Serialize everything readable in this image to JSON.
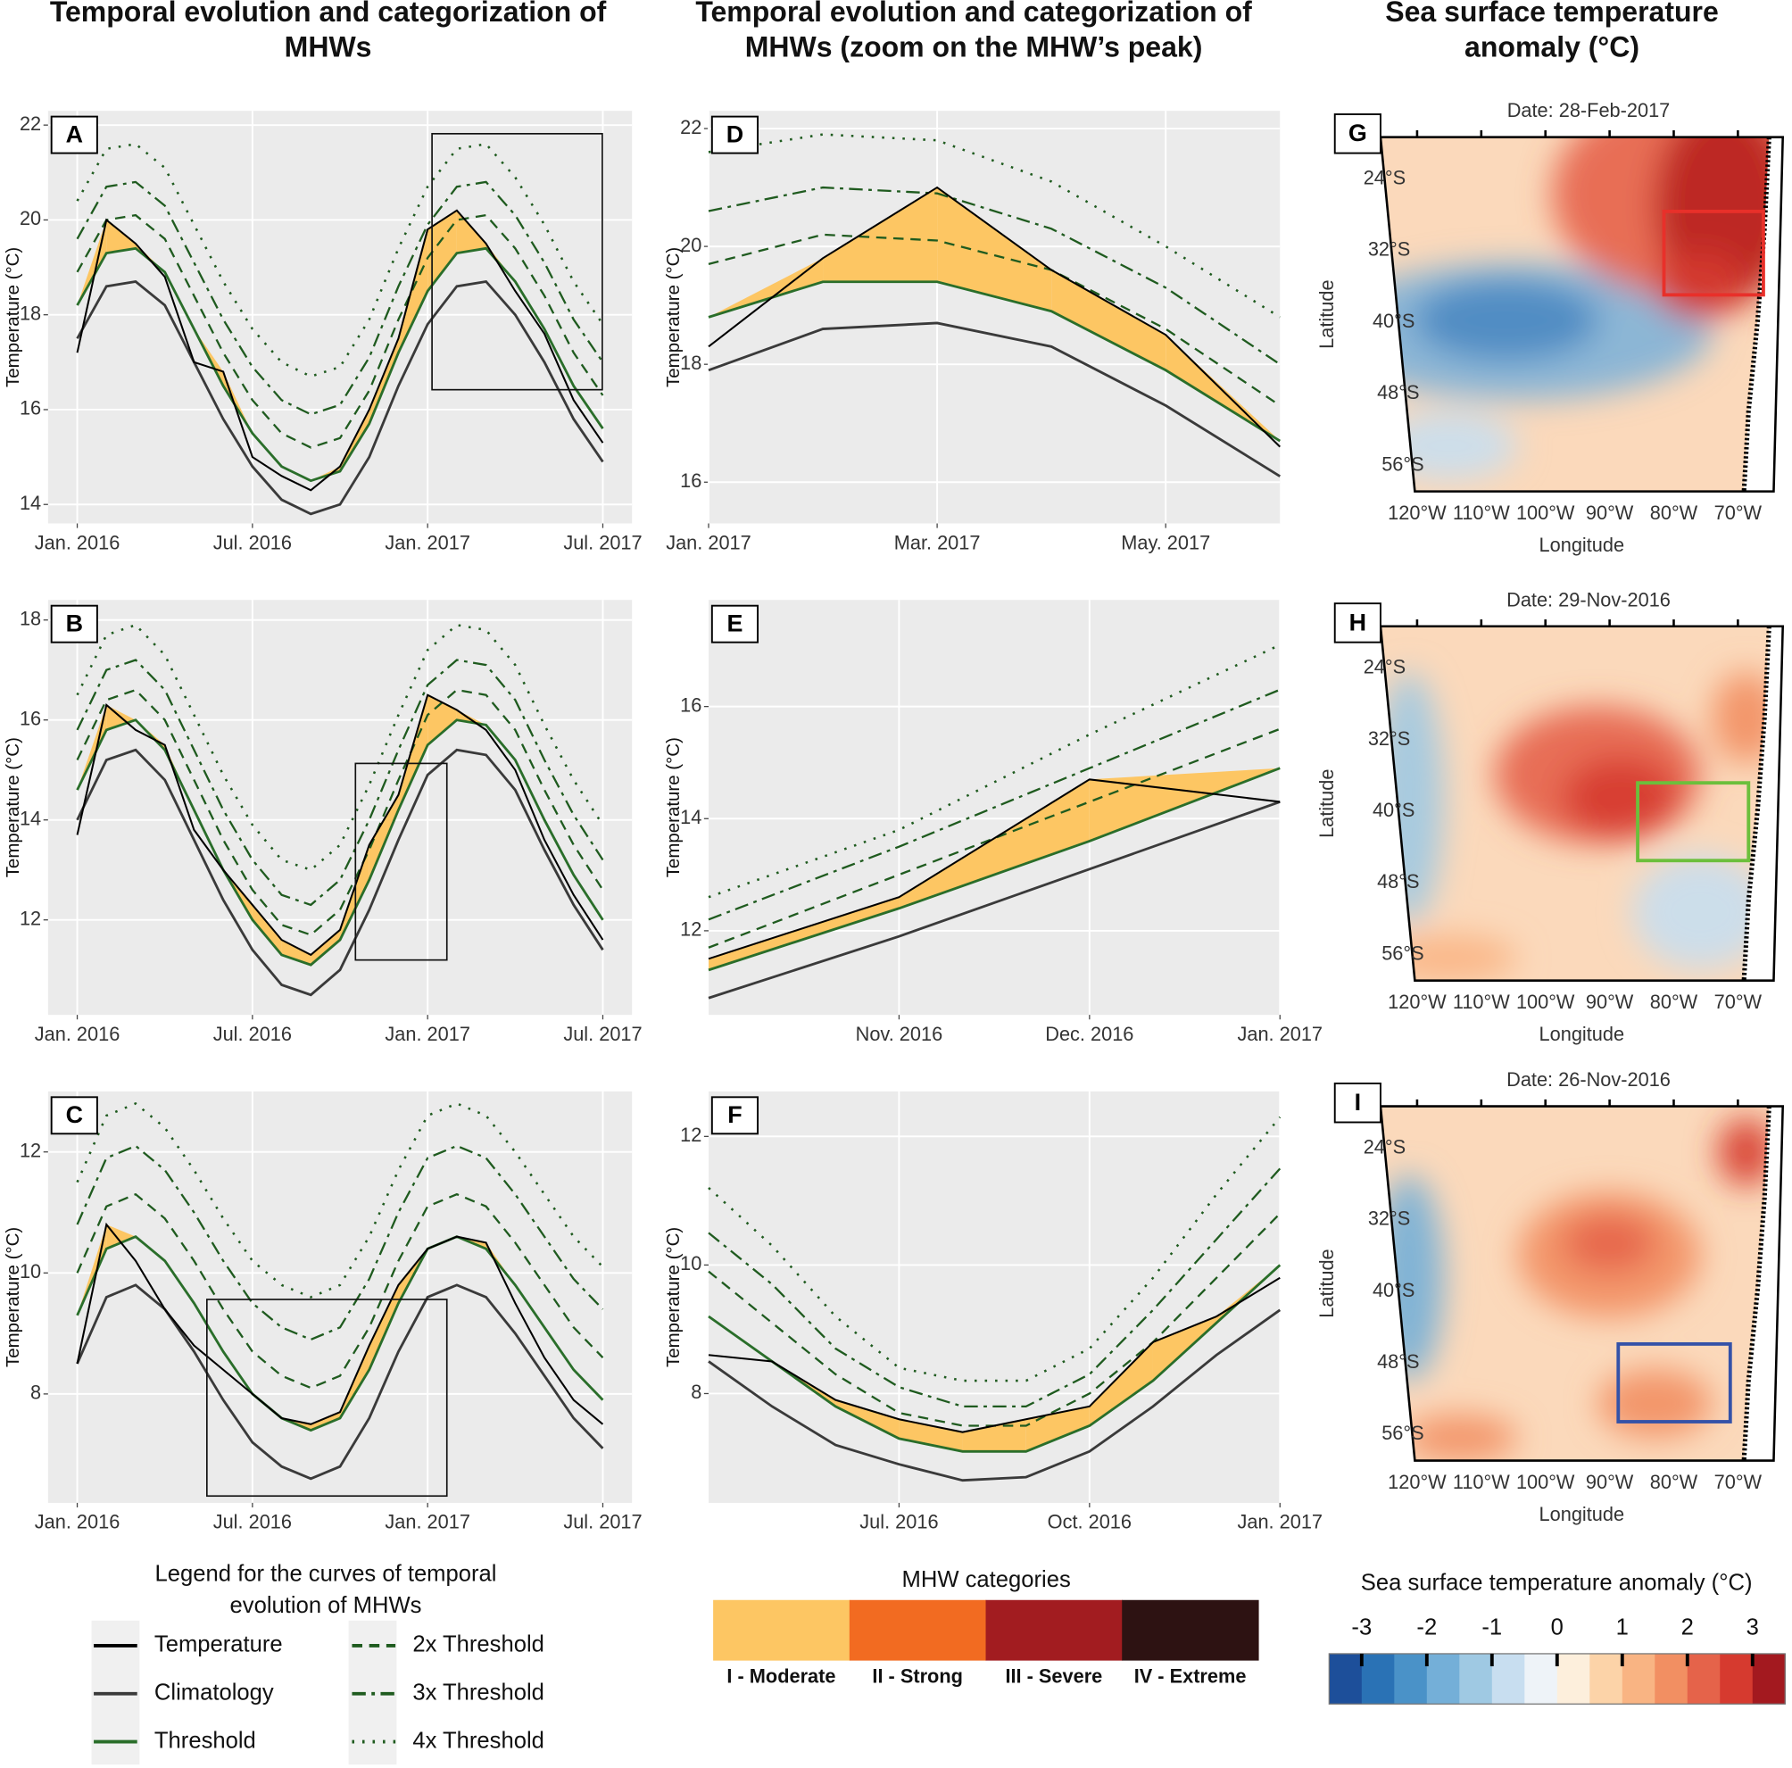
{
  "column_titles": [
    [
      "Temporal evolution and categorization of",
      "MHWs"
    ],
    [
      "Temporal evolution and categorization of",
      "MHWs (zoom on the MHW’s peak)"
    ],
    [
      "Sea surface temperature",
      "anomaly (°C)"
    ]
  ],
  "chart_data": [
    {
      "type": "line",
      "label": "A",
      "ylabel": "Temperature (°C)",
      "xlim": [
        "2015-12",
        "2017-08"
      ],
      "xticks": [
        {
          "value": "2016-01",
          "label": "Jan. 2016"
        },
        {
          "value": "2016-07",
          "label": "Jul. 2016"
        },
        {
          "value": "2017-01",
          "label": "Jan. 2017"
        },
        {
          "value": "2017-07",
          "label": "Jul. 2017"
        }
      ],
      "ylim": [
        13.6,
        22.3
      ],
      "yticks": [
        14,
        16,
        18,
        20,
        22
      ],
      "x": [
        "2016-01",
        "2016-02",
        "2016-03",
        "2016-04",
        "2016-05",
        "2016-06",
        "2016-07",
        "2016-08",
        "2016-09",
        "2016-10",
        "2016-11",
        "2016-12",
        "2017-01",
        "2017-02",
        "2017-03",
        "2017-04",
        "2017-05",
        "2017-06",
        "2017-07"
      ],
      "series": [
        {
          "values": [
            17.2,
            20.0,
            19.5,
            18.8,
            17.0,
            16.8,
            15.0,
            14.6,
            14.3,
            14.8,
            16.0,
            17.5,
            19.8,
            20.2,
            19.5,
            18.5,
            17.6,
            16.2,
            15.3
          ]
        },
        {
          "values": [
            17.5,
            18.6,
            18.7,
            18.2,
            17.0,
            15.8,
            14.8,
            14.1,
            13.8,
            14.0,
            15.0,
            16.5,
            17.8,
            18.6,
            18.7,
            18.0,
            17.0,
            15.8,
            14.9
          ]
        },
        {
          "values": [
            18.2,
            19.3,
            19.4,
            18.9,
            17.7,
            16.5,
            15.5,
            14.8,
            14.5,
            14.7,
            15.7,
            17.2,
            18.5,
            19.3,
            19.4,
            18.7,
            17.7,
            16.5,
            15.6
          ]
        },
        {
          "values": [
            18.9,
            20.0,
            20.1,
            19.6,
            18.4,
            17.2,
            16.2,
            15.5,
            15.2,
            15.4,
            16.4,
            17.9,
            19.2,
            20.0,
            20.1,
            19.4,
            18.4,
            17.2,
            16.3
          ]
        },
        {
          "values": [
            19.6,
            20.7,
            20.8,
            20.3,
            19.1,
            17.9,
            16.9,
            16.2,
            15.9,
            16.1,
            17.1,
            18.6,
            19.9,
            20.7,
            20.8,
            20.1,
            19.1,
            17.9,
            17.0
          ]
        },
        {
          "values": [
            20.4,
            21.5,
            21.6,
            21.1,
            19.9,
            18.7,
            17.7,
            17.0,
            16.7,
            16.9,
            17.9,
            19.4,
            20.7,
            21.5,
            21.6,
            20.9,
            19.9,
            18.7,
            17.8
          ]
        }
      ]
    },
    {
      "type": "line",
      "label": "D",
      "ylabel": "Temperature (°C)",
      "xlim": [
        "2017-01",
        "2017-06"
      ],
      "xticks": [
        {
          "value": "2017-01",
          "label": "Jan. 2017"
        },
        {
          "value": "2017-03",
          "label": "Mar. 2017"
        },
        {
          "value": "2017-05",
          "label": "May. 2017"
        }
      ],
      "ylim": [
        15.3,
        22.3
      ],
      "yticks": [
        16,
        18,
        20,
        22
      ],
      "x": [
        "2017-01",
        "2017-02",
        "2017-03",
        "2017-04",
        "2017-05",
        "2017-06"
      ],
      "series": [
        {
          "values": [
            18.3,
            19.8,
            21.0,
            19.6,
            18.5,
            16.6
          ]
        },
        {
          "values": [
            17.9,
            18.6,
            18.7,
            18.3,
            17.3,
            16.1
          ]
        },
        {
          "values": [
            18.8,
            19.4,
            19.4,
            18.9,
            17.9,
            16.7
          ]
        },
        {
          "values": [
            19.7,
            20.2,
            20.1,
            19.6,
            18.6,
            17.3
          ]
        },
        {
          "values": [
            20.6,
            21.0,
            20.9,
            20.3,
            19.3,
            18.0
          ]
        },
        {
          "values": [
            21.6,
            21.9,
            21.8,
            21.1,
            20.0,
            18.8
          ]
        }
      ]
    },
    {
      "type": "line",
      "label": "B",
      "ylabel": "Temperature (°C)",
      "xlim": [
        "2015-12",
        "2017-08"
      ],
      "xticks": [
        {
          "value": "2016-01",
          "label": "Jan. 2016"
        },
        {
          "value": "2016-07",
          "label": "Jul. 2016"
        },
        {
          "value": "2017-01",
          "label": "Jan. 2017"
        },
        {
          "value": "2017-07",
          "label": "Jul. 2017"
        }
      ],
      "ylim": [
        10.1,
        18.4
      ],
      "yticks": [
        12,
        14,
        16,
        18
      ],
      "x": [
        "2016-01",
        "2016-02",
        "2016-03",
        "2016-04",
        "2016-05",
        "2016-06",
        "2016-07",
        "2016-08",
        "2016-09",
        "2016-10",
        "2016-11",
        "2016-12",
        "2017-01",
        "2017-02",
        "2017-03",
        "2017-04",
        "2017-05",
        "2017-06",
        "2017-07"
      ],
      "series": [
        {
          "values": [
            13.7,
            16.3,
            15.8,
            15.5,
            13.8,
            13.0,
            12.3,
            11.6,
            11.3,
            11.8,
            13.5,
            14.5,
            16.5,
            16.2,
            15.8,
            15.0,
            13.6,
            12.5,
            11.6
          ]
        },
        {
          "values": [
            14.0,
            15.2,
            15.4,
            14.8,
            13.6,
            12.4,
            11.4,
            10.7,
            10.5,
            11.0,
            12.2,
            13.6,
            14.9,
            15.4,
            15.3,
            14.6,
            13.4,
            12.3,
            11.4
          ]
        },
        {
          "values": [
            14.6,
            15.8,
            16.0,
            15.4,
            14.2,
            13.0,
            12.0,
            11.3,
            11.1,
            11.6,
            12.8,
            14.2,
            15.5,
            16.0,
            15.9,
            15.2,
            14.0,
            12.9,
            12.0
          ]
        },
        {
          "values": [
            15.2,
            16.4,
            16.6,
            16.0,
            14.8,
            13.6,
            12.6,
            11.9,
            11.7,
            12.2,
            13.4,
            14.8,
            16.1,
            16.6,
            16.5,
            15.8,
            14.6,
            13.5,
            12.6
          ]
        },
        {
          "values": [
            15.8,
            17.0,
            17.2,
            16.6,
            15.4,
            14.2,
            13.2,
            12.5,
            12.3,
            12.8,
            14.0,
            15.4,
            16.7,
            17.2,
            17.1,
            16.4,
            15.2,
            14.1,
            13.2
          ]
        },
        {
          "values": [
            16.5,
            17.7,
            17.9,
            17.3,
            16.1,
            14.9,
            13.9,
            13.2,
            13.0,
            13.5,
            14.7,
            16.1,
            17.4,
            17.9,
            17.8,
            17.1,
            15.9,
            14.8,
            13.9
          ]
        }
      ]
    },
    {
      "type": "line",
      "label": "E",
      "ylabel": "Temperature (°C)",
      "xlim": [
        "2016-10",
        "2017-01"
      ],
      "xticks": [
        {
          "value": "2016-11",
          "label": "Nov. 2016"
        },
        {
          "value": "2016-12",
          "label": "Dec. 2016"
        },
        {
          "value": "2017-01",
          "label": "Jan. 2017"
        }
      ],
      "ylim": [
        10.5,
        17.9
      ],
      "yticks": [
        12,
        14,
        16
      ],
      "x": [
        "2016-10",
        "2016-11",
        "2016-12",
        "2017-01"
      ],
      "series": [
        {
          "values": [
            11.5,
            12.6,
            14.7,
            14.3
          ]
        },
        {
          "values": [
            10.8,
            11.9,
            13.1,
            14.3
          ]
        },
        {
          "values": [
            11.3,
            12.4,
            13.6,
            14.9
          ]
        },
        {
          "values": [
            11.7,
            13.0,
            14.3,
            15.6
          ]
        },
        {
          "values": [
            12.2,
            13.5,
            14.9,
            16.3
          ]
        },
        {
          "values": [
            12.6,
            13.8,
            15.5,
            17.1
          ]
        }
      ]
    },
    {
      "type": "line",
      "label": "C",
      "ylabel": "Temperature (°C)",
      "xlim": [
        "2015-12",
        "2017-08"
      ],
      "xticks": [
        {
          "value": "2016-01",
          "label": "Jan. 2016"
        },
        {
          "value": "2016-07",
          "label": "Jul. 2016"
        },
        {
          "value": "2017-01",
          "label": "Jan. 2017"
        },
        {
          "value": "2017-07",
          "label": "Jul. 2017"
        }
      ],
      "ylim": [
        6.2,
        13.0
      ],
      "yticks": [
        8,
        10,
        12
      ],
      "x": [
        "2016-01",
        "2016-02",
        "2016-03",
        "2016-04",
        "2016-05",
        "2016-06",
        "2016-07",
        "2016-08",
        "2016-09",
        "2016-10",
        "2016-11",
        "2016-12",
        "2017-01",
        "2017-02",
        "2017-03",
        "2017-04",
        "2017-05",
        "2017-06",
        "2017-07"
      ],
      "series": [
        {
          "values": [
            8.5,
            10.8,
            10.2,
            9.4,
            8.8,
            8.4,
            8.0,
            7.6,
            7.5,
            7.7,
            8.8,
            9.8,
            10.4,
            10.6,
            10.5,
            9.5,
            8.6,
            7.9,
            7.5
          ]
        },
        {
          "values": [
            8.5,
            9.6,
            9.8,
            9.4,
            8.7,
            7.9,
            7.2,
            6.8,
            6.6,
            6.8,
            7.6,
            8.7,
            9.6,
            9.8,
            9.6,
            9.0,
            8.3,
            7.6,
            7.1
          ]
        },
        {
          "values": [
            9.3,
            10.4,
            10.6,
            10.2,
            9.5,
            8.7,
            8.0,
            7.6,
            7.4,
            7.6,
            8.4,
            9.5,
            10.4,
            10.6,
            10.4,
            9.8,
            9.1,
            8.4,
            7.9
          ]
        },
        {
          "values": [
            10.0,
            11.1,
            11.3,
            10.9,
            10.2,
            9.4,
            8.7,
            8.3,
            8.1,
            8.3,
            9.1,
            10.2,
            11.1,
            11.3,
            11.1,
            10.5,
            9.8,
            9.1,
            8.6
          ]
        },
        {
          "values": [
            10.8,
            11.9,
            12.1,
            11.7,
            11.0,
            10.2,
            9.5,
            9.1,
            8.9,
            9.1,
            9.9,
            11.0,
            11.9,
            12.1,
            11.9,
            11.3,
            10.6,
            9.9,
            9.4
          ]
        },
        {
          "values": [
            11.5,
            12.6,
            12.8,
            12.4,
            11.7,
            10.9,
            10.2,
            9.8,
            9.6,
            9.8,
            10.6,
            11.7,
            12.6,
            12.8,
            12.6,
            12.0,
            11.3,
            10.6,
            10.1
          ]
        }
      ]
    },
    {
      "type": "line",
      "label": "F",
      "ylabel": "Temperature (°C)",
      "xlim": [
        "2016-04",
        "2017-01"
      ],
      "xticks": [
        {
          "value": "2016-07",
          "label": "Jul. 2016"
        },
        {
          "value": "2016-10",
          "label": "Oct. 2016"
        },
        {
          "value": "2017-01",
          "label": "Jan. 2017"
        }
      ],
      "ylim": [
        6.3,
        12.7
      ],
      "yticks": [
        8,
        10,
        12
      ],
      "x": [
        "2016-04",
        "2016-05",
        "2016-06",
        "2016-07",
        "2016-08",
        "2016-09",
        "2016-10",
        "2016-11",
        "2016-12",
        "2017-01"
      ],
      "series": [
        {
          "values": [
            8.6,
            8.5,
            7.9,
            7.6,
            7.4,
            7.6,
            7.8,
            8.8,
            9.2,
            9.8
          ]
        },
        {
          "values": [
            8.5,
            7.8,
            7.2,
            6.9,
            6.65,
            6.7,
            7.1,
            7.8,
            8.6,
            9.3
          ]
        },
        {
          "values": [
            9.2,
            8.5,
            7.8,
            7.3,
            7.1,
            7.1,
            7.5,
            8.2,
            9.1,
            10.0
          ]
        },
        {
          "values": [
            9.9,
            9.1,
            8.3,
            7.7,
            7.5,
            7.5,
            8.0,
            8.8,
            9.8,
            10.8
          ]
        },
        {
          "values": [
            10.5,
            9.7,
            8.7,
            8.1,
            7.8,
            7.8,
            8.3,
            9.3,
            10.4,
            11.5
          ]
        },
        {
          "values": [
            11.2,
            10.3,
            9.2,
            8.4,
            8.2,
            8.2,
            8.7,
            9.8,
            11.1,
            12.3
          ]
        }
      ]
    }
  ],
  "maps": [
    {
      "label": "G",
      "title": "Date: 28-Feb-2017",
      "box_color": "#e8302a"
    },
    {
      "label": "H",
      "title": "Date: 29-Nov-2016",
      "box_color": "#6cbf3c"
    },
    {
      "label": "I",
      "title": "Date: 26-Nov-2016",
      "box_color": "#3452a8"
    }
  ],
  "map_axes": {
    "xlabel": "Longitude",
    "ylabel": "Latitude",
    "xlim": [
      -125.7,
      -63
    ],
    "ylim": [
      -58.9,
      -19.3
    ],
    "xticks": [
      {
        "value": -120,
        "label": "120°W"
      },
      {
        "value": -110,
        "label": "110°W"
      },
      {
        "value": -100,
        "label": "100°W"
      },
      {
        "value": -90,
        "label": "90°W"
      },
      {
        "value": -80,
        "label": "80°W"
      },
      {
        "value": -70,
        "label": "70°W"
      }
    ],
    "yticks": [
      {
        "value": -24,
        "label": "24°S"
      },
      {
        "value": -32,
        "label": "32°S"
      },
      {
        "value": -40,
        "label": "40°S"
      },
      {
        "value": -48,
        "label": "48°S"
      },
      {
        "value": -56,
        "label": "56°S"
      }
    ]
  },
  "legend_lines": {
    "title": [
      "Legend for the curves of temporal",
      "evolution of MHWs"
    ],
    "items": [
      {
        "name": "Temperature",
        "color": "#000000",
        "dash": "solid"
      },
      {
        "name": "Climatology",
        "color": "#3a3a3a",
        "dash": "solid"
      },
      {
        "name": "Threshold",
        "color": "#2a6e2a",
        "dash": "solid"
      },
      {
        "name": "2x Threshold",
        "color": "#1f5b1f",
        "dash": "dashed"
      },
      {
        "name": "3x Threshold",
        "color": "#1f5b1f",
        "dash": "dashdot"
      },
      {
        "name": "4x Threshold",
        "color": "#1f5b1f",
        "dash": "dotted"
      }
    ]
  },
  "categories_legend": {
    "title": "MHW categories",
    "items": [
      {
        "name": "I - Moderate",
        "color": "#fdc663"
      },
      {
        "name": "II - Strong",
        "color": "#f26b21"
      },
      {
        "name": "III - Severe",
        "color": "#a21c20"
      },
      {
        "name": "IV - Extreme",
        "color": "#2d1212"
      }
    ]
  },
  "colorbar": {
    "title": "Sea surface temperature anomaly (°C)",
    "lim": [
      -3.5,
      3.5
    ],
    "ticks": [
      -3,
      -2,
      -1,
      0,
      1,
      2,
      3
    ],
    "colors": [
      "#1d4f9a",
      "#2a72b5",
      "#4a92c8",
      "#74afd8",
      "#9fc9e3",
      "#c8def0",
      "#eef3f8",
      "#fdefdc",
      "#fcd3a8",
      "#f9b483",
      "#f28f62",
      "#e5634a",
      "#d63a2f",
      "#a3191f"
    ]
  }
}
